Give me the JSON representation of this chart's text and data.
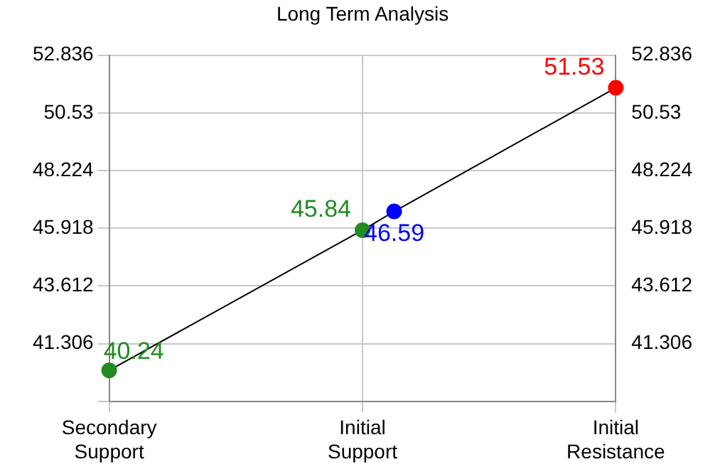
{
  "chart_data": {
    "type": "line",
    "title": "Long Term Analysis",
    "categories": [
      "Secondary Support",
      null,
      null,
      null,
      null,
      null,
      null,
      null,
      "Initial Support",
      null,
      null,
      null,
      null,
      null,
      null,
      null,
      "Initial Resistance"
    ],
    "series": [
      {
        "color": "#000000",
        "colors": [
          "#228b22",
          null,
          null,
          null,
          null,
          null,
          null,
          null,
          "#228b22",
          "#0000ff",
          null,
          null,
          null,
          null,
          null,
          null,
          "#ff0000"
        ],
        "values": [
          40.24,
          null,
          null,
          null,
          null,
          null,
          null,
          null,
          45.84,
          46.59,
          null,
          null,
          null,
          null,
          null,
          null,
          51.53
        ]
      }
    ],
    "ylim": [
      39,
      52.836
    ],
    "yticks": [
      {
        "value": 39,
        "label": null
      },
      41.306,
      43.612,
      45.918,
      48.224,
      50.53,
      52.836
    ],
    "y2lim": [
      39,
      52.836
    ],
    "y2ticks": [
      41.306,
      43.612,
      45.918,
      48.224,
      50.53,
      52.836
    ],
    "grid": true,
    "marker": "circle",
    "line_style": "solid",
    "data_labels": true
  }
}
